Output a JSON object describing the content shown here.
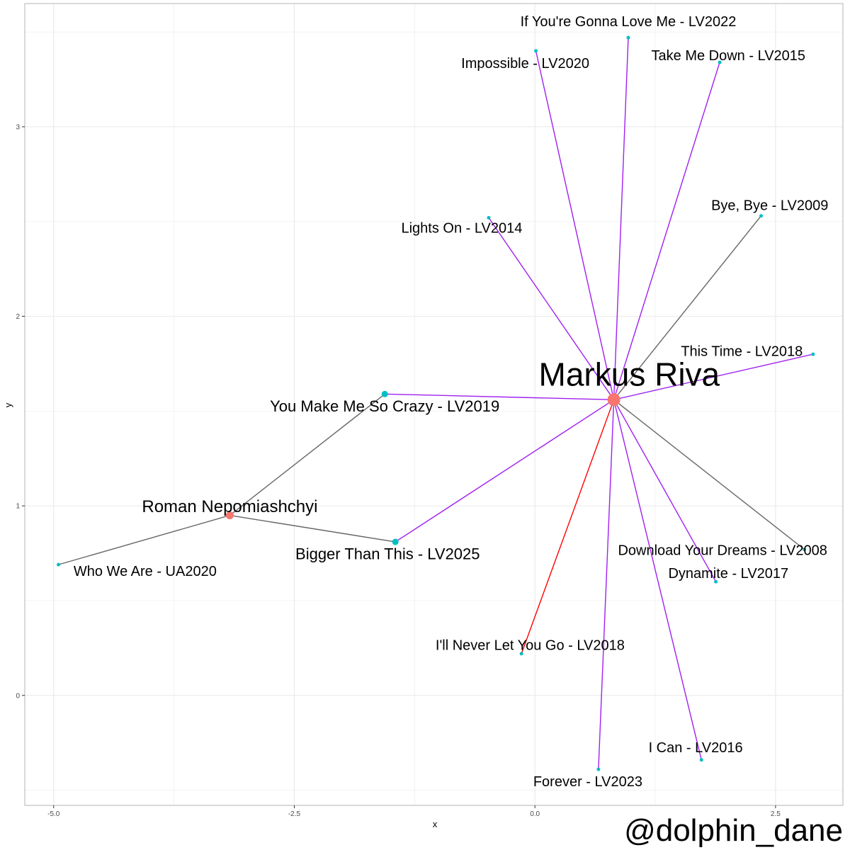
{
  "watermark": "@dolphin_dane",
  "chart_data": {
    "type": "network",
    "xlabel": "x",
    "ylabel": "y",
    "xlim": [
      -5.3,
      3.2
    ],
    "ylim": [
      -0.58,
      3.65
    ],
    "x_ticks": [
      {
        "value": -5.0,
        "label": "-5.0"
      },
      {
        "value": -2.5,
        "label": "-2.5"
      },
      {
        "value": 0.0,
        "label": "0.0"
      },
      {
        "value": 2.5,
        "label": "2.5"
      }
    ],
    "y_ticks": [
      {
        "value": 0,
        "label": "0"
      },
      {
        "value": 1,
        "label": "1"
      },
      {
        "value": 2,
        "label": "2"
      },
      {
        "value": 3,
        "label": "3"
      }
    ],
    "grid": true,
    "colors": {
      "artist_node": "#F8766D",
      "song_node": "#00BFC4",
      "edge_purple": "#A020F0",
      "edge_gray": "#666666",
      "edge_red": "#FF0000",
      "grid": "#EBEBEB",
      "panel_border": "#B3B3B3"
    },
    "nodes": [
      {
        "id": "markus",
        "label": "Markus Riva",
        "kind": "artist",
        "x": 0.82,
        "y": 1.56,
        "size": 9,
        "font": 46,
        "lx": 0.98,
        "ly": 1.68
      },
      {
        "id": "roman",
        "label": "Roman Nepomiashchyi",
        "kind": "artist",
        "x": -3.17,
        "y": 0.95,
        "size": 5.5,
        "font": 24,
        "lx": -3.17,
        "ly": 0.99
      },
      {
        "id": "ymmsc",
        "label": "You Make Me So Crazy - LV2019",
        "kind": "song",
        "x": -1.56,
        "y": 1.59,
        "size": 4.5,
        "font": 22,
        "lx": -1.56,
        "ly": 1.52
      },
      {
        "id": "btt",
        "label": "Bigger Than This - LV2025",
        "kind": "song",
        "x": -1.45,
        "y": 0.81,
        "size": 4.5,
        "font": 22,
        "lx": -1.53,
        "ly": 0.74
      },
      {
        "id": "wwa",
        "label": "Who We Are - UA2020",
        "kind": "song",
        "x": -4.95,
        "y": 0.69,
        "size": 2.5,
        "font": 20,
        "lx": -4.05,
        "ly": 0.65
      },
      {
        "id": "imp",
        "label": "Impossible - LV2020",
        "kind": "song",
        "x": 0.01,
        "y": 3.4,
        "size": 2.5,
        "font": 20,
        "lx": -0.1,
        "ly": 3.33
      },
      {
        "id": "iygl",
        "label": "If You're Gonna Love Me - LV2022",
        "kind": "song",
        "x": 0.97,
        "y": 3.47,
        "size": 2.5,
        "font": 20,
        "lx": 0.97,
        "ly": 3.55
      },
      {
        "id": "tmd",
        "label": "Take Me Down - LV2015",
        "kind": "song",
        "x": 1.92,
        "y": 3.34,
        "size": 2.5,
        "font": 20,
        "lx": 2.01,
        "ly": 3.37
      },
      {
        "id": "lo",
        "label": "Lights On - LV2014",
        "kind": "song",
        "x": -0.48,
        "y": 2.52,
        "size": 2.5,
        "font": 20,
        "lx": -0.76,
        "ly": 2.46
      },
      {
        "id": "bb",
        "label": "Bye, Bye - LV2009",
        "kind": "song",
        "x": 2.35,
        "y": 2.53,
        "size": 2.5,
        "font": 20,
        "lx": 2.44,
        "ly": 2.58
      },
      {
        "id": "tt",
        "label": "This Time - LV2018",
        "kind": "song",
        "x": 2.89,
        "y": 1.8,
        "size": 2.5,
        "font": 20,
        "lx": 2.15,
        "ly": 1.81
      },
      {
        "id": "dyd",
        "label": "Download Your Dreams - LV2008",
        "kind": "song",
        "x": 2.8,
        "y": 0.77,
        "size": 2.5,
        "font": 20,
        "lx": 1.95,
        "ly": 0.76
      },
      {
        "id": "dyn",
        "label": "Dynamite - LV2017",
        "kind": "song",
        "x": 1.88,
        "y": 0.6,
        "size": 2.5,
        "font": 20,
        "lx": 2.01,
        "ly": 0.64
      },
      {
        "id": "inlygo",
        "label": "I'll Never Let You Go - LV2018",
        "kind": "song",
        "x": -0.14,
        "y": 0.22,
        "size": 2.5,
        "font": 20,
        "lx": -0.05,
        "ly": 0.26
      },
      {
        "id": "ican",
        "label": "I Can - LV2016",
        "kind": "song",
        "x": 1.73,
        "y": -0.34,
        "size": 2.5,
        "font": 20,
        "lx": 1.67,
        "ly": -0.28
      },
      {
        "id": "forever",
        "label": "Forever - LV2023",
        "kind": "song",
        "x": 0.66,
        "y": -0.39,
        "size": 2.5,
        "font": 20,
        "lx": 0.55,
        "ly": -0.46
      }
    ],
    "edges": [
      {
        "from": "markus",
        "to": "ymmsc",
        "color": "purple"
      },
      {
        "from": "markus",
        "to": "btt",
        "color": "purple"
      },
      {
        "from": "markus",
        "to": "imp",
        "color": "purple"
      },
      {
        "from": "markus",
        "to": "iygl",
        "color": "purple"
      },
      {
        "from": "markus",
        "to": "tmd",
        "color": "purple"
      },
      {
        "from": "markus",
        "to": "lo",
        "color": "purple"
      },
      {
        "from": "markus",
        "to": "bb",
        "color": "gray"
      },
      {
        "from": "markus",
        "to": "tt",
        "color": "purple"
      },
      {
        "from": "markus",
        "to": "dyd",
        "color": "gray"
      },
      {
        "from": "markus",
        "to": "dyn",
        "color": "purple"
      },
      {
        "from": "markus",
        "to": "inlygo",
        "color": "red"
      },
      {
        "from": "markus",
        "to": "ican",
        "color": "purple"
      },
      {
        "from": "markus",
        "to": "forever",
        "color": "purple"
      },
      {
        "from": "roman",
        "to": "ymmsc",
        "color": "gray"
      },
      {
        "from": "roman",
        "to": "btt",
        "color": "gray"
      },
      {
        "from": "roman",
        "to": "wwa",
        "color": "gray"
      }
    ]
  }
}
